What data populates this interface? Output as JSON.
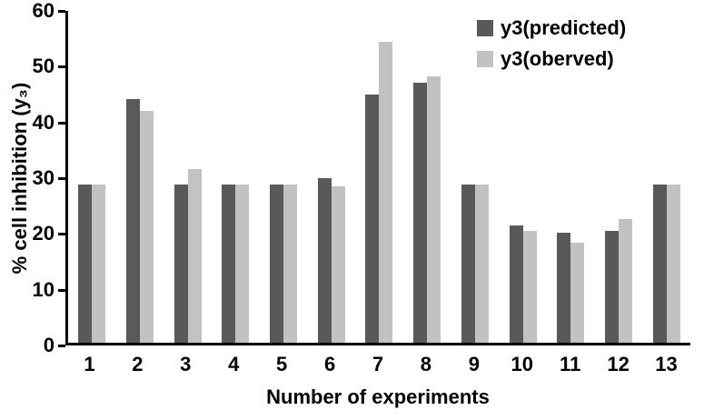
{
  "chart_data": {
    "type": "bar",
    "title": "",
    "xlabel": "Number of experiments",
    "ylabel": "% cell inhibition (y₃)",
    "categories": [
      "1",
      "2",
      "3",
      "4",
      "5",
      "6",
      "7",
      "8",
      "9",
      "10",
      "11",
      "12",
      "13"
    ],
    "series": [
      {
        "name": "y3(predicted)",
        "color": "#595959",
        "values": [
          28.3,
          43.7,
          28.4,
          28.3,
          28.3,
          29.5,
          44.5,
          46.6,
          28.3,
          21.1,
          19.8,
          20.1,
          28.3
        ]
      },
      {
        "name": "y3(oberved)",
        "color": "#c2c2c2",
        "values": [
          28.3,
          41.5,
          31.1,
          28.3,
          28.3,
          28.0,
          54.0,
          47.7,
          28.3,
          20.0,
          18.0,
          22.2,
          28.3
        ]
      }
    ],
    "ylim": [
      0,
      60
    ],
    "yticks": [
      0,
      10,
      20,
      30,
      40,
      50,
      60
    ],
    "grid": false,
    "legend_position": "top-right"
  }
}
